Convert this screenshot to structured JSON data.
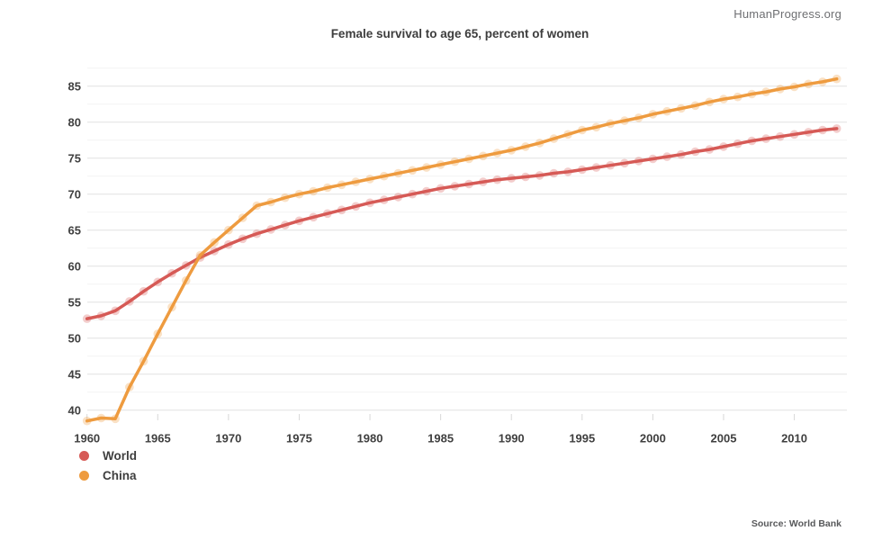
{
  "header": {
    "watermark": "HumanProgress.org"
  },
  "footer": {
    "source": "Source: World Bank"
  },
  "chart_data": {
    "type": "line",
    "title": "Female survival to age 65, percent of women",
    "xlabel": "",
    "ylabel": "",
    "x": [
      1960,
      1961,
      1962,
      1963,
      1964,
      1965,
      1966,
      1967,
      1968,
      1969,
      1970,
      1971,
      1972,
      1973,
      1974,
      1975,
      1976,
      1977,
      1978,
      1979,
      1980,
      1981,
      1982,
      1983,
      1984,
      1985,
      1986,
      1987,
      1988,
      1989,
      1990,
      1991,
      1992,
      1993,
      1994,
      1995,
      1996,
      1997,
      1998,
      1999,
      2000,
      2001,
      2002,
      2003,
      2004,
      2005,
      2006,
      2007,
      2008,
      2009,
      2010,
      2011,
      2012,
      2013
    ],
    "series": [
      {
        "name": "World",
        "color": "#D65A56",
        "values": [
          52.7,
          53.1,
          53.8,
          55.1,
          56.5,
          57.8,
          59.0,
          60.1,
          61.2,
          62.1,
          63.0,
          63.8,
          64.5,
          65.1,
          65.7,
          66.3,
          66.8,
          67.3,
          67.8,
          68.3,
          68.8,
          69.2,
          69.6,
          70.0,
          70.4,
          70.8,
          71.1,
          71.4,
          71.7,
          72.0,
          72.2,
          72.4,
          72.6,
          72.9,
          73.1,
          73.4,
          73.7,
          74.0,
          74.3,
          74.6,
          74.9,
          75.2,
          75.5,
          75.9,
          76.2,
          76.6,
          77.0,
          77.4,
          77.7,
          78.0,
          78.3,
          78.6,
          78.9,
          79.1
        ]
      },
      {
        "name": "China",
        "color": "#EE9B3F",
        "values": [
          38.5,
          38.9,
          38.8,
          43.2,
          46.8,
          50.6,
          54.3,
          58.0,
          61.5,
          63.3,
          65.0,
          66.7,
          68.4,
          68.9,
          69.5,
          70.0,
          70.4,
          70.9,
          71.3,
          71.7,
          72.1,
          72.5,
          72.9,
          73.3,
          73.7,
          74.1,
          74.5,
          74.9,
          75.3,
          75.7,
          76.1,
          76.6,
          77.1,
          77.7,
          78.3,
          78.9,
          79.3,
          79.8,
          80.2,
          80.6,
          81.1,
          81.5,
          81.9,
          82.3,
          82.8,
          83.2,
          83.5,
          83.9,
          84.2,
          84.6,
          84.9,
          85.3,
          85.6,
          86.0
        ]
      }
    ],
    "ylim": [
      37.5,
      87.5
    ],
    "xlim": [
      1960,
      2013
    ],
    "y_ticks": [
      40,
      45,
      50,
      55,
      60,
      65,
      70,
      75,
      80,
      85
    ],
    "x_ticks": [
      1960,
      1965,
      1970,
      1975,
      1980,
      1985,
      1990,
      1995,
      2000,
      2005,
      2010
    ],
    "grid": "horizontal only, major + minor (2.5 steps)",
    "legend_position": "bottom-left",
    "marker": "translucent circle halo on opaque line"
  }
}
